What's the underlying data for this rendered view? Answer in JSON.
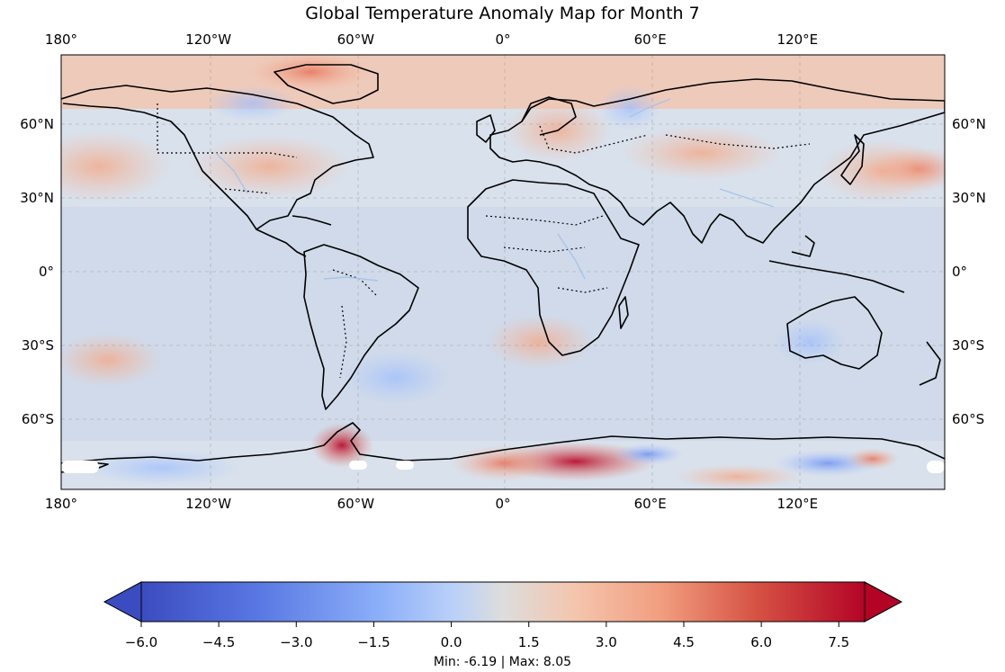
{
  "title": "Global Temperature Anomaly Map for Month 7",
  "lon_ticks": [
    {
      "lon": -180,
      "label": "180°"
    },
    {
      "lon": -120,
      "label": "120°W"
    },
    {
      "lon": -60,
      "label": "60°W"
    },
    {
      "lon": 0,
      "label": "0°"
    },
    {
      "lon": 60,
      "label": "60°E"
    },
    {
      "lon": 120,
      "label": "120°E"
    }
  ],
  "lat_ticks": [
    {
      "lat": 60,
      "label": "60°N"
    },
    {
      "lat": 30,
      "label": "30°N"
    },
    {
      "lat": 0,
      "label": "0°"
    },
    {
      "lat": -30,
      "label": "30°S"
    },
    {
      "lat": -60,
      "label": "60°S"
    }
  ],
  "colorbar": {
    "min": -6.0,
    "max": 8.0,
    "extend": "both",
    "colormap": "coolwarm",
    "colors": [
      "#3b4cc0",
      "#6f92f3",
      "#aac7fd",
      "#dddddd",
      "#f7b89c",
      "#e7745b",
      "#b40426"
    ],
    "ticks": [
      "−6.0",
      "−4.5",
      "−3.0",
      "−1.5",
      "0.0",
      "1.5",
      "3.0",
      "4.5",
      "6.0",
      "7.5"
    ],
    "tick_values": [
      -6.0,
      -4.5,
      -3.0,
      -1.5,
      0.0,
      1.5,
      3.0,
      4.5,
      6.0,
      7.5
    ]
  },
  "stats_text": "Min: -6.19 | Max: 8.05",
  "map_features": {
    "projection": "PlateCarree",
    "gridlines": true,
    "coastlines": true,
    "borders": "dotted",
    "rivers": true,
    "extent": {
      "lon": [
        -180,
        180
      ],
      "lat": [
        -90,
        90
      ]
    }
  }
}
